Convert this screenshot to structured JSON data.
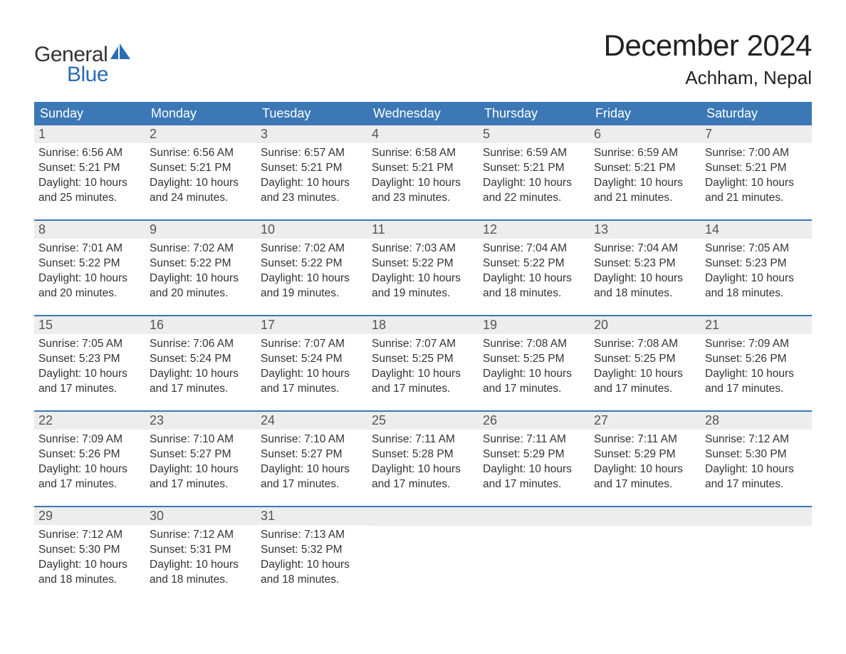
{
  "logo": {
    "text_general": "General",
    "text_blue": "Blue",
    "icon_color": "#2a6db5",
    "text_color_general": "#333333",
    "text_color_blue": "#2a6db5"
  },
  "title": {
    "main": "December 2024",
    "sub": "Achham, Nepal",
    "main_fontsize": 42,
    "sub_fontsize": 26,
    "color": "#222222"
  },
  "calendar": {
    "header_bg": "#3b78b5",
    "header_text_color": "#ffffff",
    "week_border_color": "#3b78b5",
    "daynum_bg": "#ededed",
    "daynum_color": "#555555",
    "content_color": "#333333",
    "content_fontsize": 15.5,
    "day_names": [
      "Sunday",
      "Monday",
      "Tuesday",
      "Wednesday",
      "Thursday",
      "Friday",
      "Saturday"
    ],
    "weeks": [
      [
        {
          "num": "1",
          "sunrise": "Sunrise: 6:56 AM",
          "sunset": "Sunset: 5:21 PM",
          "day1": "Daylight: 10 hours",
          "day2": "and 25 minutes."
        },
        {
          "num": "2",
          "sunrise": "Sunrise: 6:56 AM",
          "sunset": "Sunset: 5:21 PM",
          "day1": "Daylight: 10 hours",
          "day2": "and 24 minutes."
        },
        {
          "num": "3",
          "sunrise": "Sunrise: 6:57 AM",
          "sunset": "Sunset: 5:21 PM",
          "day1": "Daylight: 10 hours",
          "day2": "and 23 minutes."
        },
        {
          "num": "4",
          "sunrise": "Sunrise: 6:58 AM",
          "sunset": "Sunset: 5:21 PM",
          "day1": "Daylight: 10 hours",
          "day2": "and 23 minutes."
        },
        {
          "num": "5",
          "sunrise": "Sunrise: 6:59 AM",
          "sunset": "Sunset: 5:21 PM",
          "day1": "Daylight: 10 hours",
          "day2": "and 22 minutes."
        },
        {
          "num": "6",
          "sunrise": "Sunrise: 6:59 AM",
          "sunset": "Sunset: 5:21 PM",
          "day1": "Daylight: 10 hours",
          "day2": "and 21 minutes."
        },
        {
          "num": "7",
          "sunrise": "Sunrise: 7:00 AM",
          "sunset": "Sunset: 5:21 PM",
          "day1": "Daylight: 10 hours",
          "day2": "and 21 minutes."
        }
      ],
      [
        {
          "num": "8",
          "sunrise": "Sunrise: 7:01 AM",
          "sunset": "Sunset: 5:22 PM",
          "day1": "Daylight: 10 hours",
          "day2": "and 20 minutes."
        },
        {
          "num": "9",
          "sunrise": "Sunrise: 7:02 AM",
          "sunset": "Sunset: 5:22 PM",
          "day1": "Daylight: 10 hours",
          "day2": "and 20 minutes."
        },
        {
          "num": "10",
          "sunrise": "Sunrise: 7:02 AM",
          "sunset": "Sunset: 5:22 PM",
          "day1": "Daylight: 10 hours",
          "day2": "and 19 minutes."
        },
        {
          "num": "11",
          "sunrise": "Sunrise: 7:03 AM",
          "sunset": "Sunset: 5:22 PM",
          "day1": "Daylight: 10 hours",
          "day2": "and 19 minutes."
        },
        {
          "num": "12",
          "sunrise": "Sunrise: 7:04 AM",
          "sunset": "Sunset: 5:22 PM",
          "day1": "Daylight: 10 hours",
          "day2": "and 18 minutes."
        },
        {
          "num": "13",
          "sunrise": "Sunrise: 7:04 AM",
          "sunset": "Sunset: 5:23 PM",
          "day1": "Daylight: 10 hours",
          "day2": "and 18 minutes."
        },
        {
          "num": "14",
          "sunrise": "Sunrise: 7:05 AM",
          "sunset": "Sunset: 5:23 PM",
          "day1": "Daylight: 10 hours",
          "day2": "and 18 minutes."
        }
      ],
      [
        {
          "num": "15",
          "sunrise": "Sunrise: 7:05 AM",
          "sunset": "Sunset: 5:23 PM",
          "day1": "Daylight: 10 hours",
          "day2": "and 17 minutes."
        },
        {
          "num": "16",
          "sunrise": "Sunrise: 7:06 AM",
          "sunset": "Sunset: 5:24 PM",
          "day1": "Daylight: 10 hours",
          "day2": "and 17 minutes."
        },
        {
          "num": "17",
          "sunrise": "Sunrise: 7:07 AM",
          "sunset": "Sunset: 5:24 PM",
          "day1": "Daylight: 10 hours",
          "day2": "and 17 minutes."
        },
        {
          "num": "18",
          "sunrise": "Sunrise: 7:07 AM",
          "sunset": "Sunset: 5:25 PM",
          "day1": "Daylight: 10 hours",
          "day2": "and 17 minutes."
        },
        {
          "num": "19",
          "sunrise": "Sunrise: 7:08 AM",
          "sunset": "Sunset: 5:25 PM",
          "day1": "Daylight: 10 hours",
          "day2": "and 17 minutes."
        },
        {
          "num": "20",
          "sunrise": "Sunrise: 7:08 AM",
          "sunset": "Sunset: 5:25 PM",
          "day1": "Daylight: 10 hours",
          "day2": "and 17 minutes."
        },
        {
          "num": "21",
          "sunrise": "Sunrise: 7:09 AM",
          "sunset": "Sunset: 5:26 PM",
          "day1": "Daylight: 10 hours",
          "day2": "and 17 minutes."
        }
      ],
      [
        {
          "num": "22",
          "sunrise": "Sunrise: 7:09 AM",
          "sunset": "Sunset: 5:26 PM",
          "day1": "Daylight: 10 hours",
          "day2": "and 17 minutes."
        },
        {
          "num": "23",
          "sunrise": "Sunrise: 7:10 AM",
          "sunset": "Sunset: 5:27 PM",
          "day1": "Daylight: 10 hours",
          "day2": "and 17 minutes."
        },
        {
          "num": "24",
          "sunrise": "Sunrise: 7:10 AM",
          "sunset": "Sunset: 5:27 PM",
          "day1": "Daylight: 10 hours",
          "day2": "and 17 minutes."
        },
        {
          "num": "25",
          "sunrise": "Sunrise: 7:11 AM",
          "sunset": "Sunset: 5:28 PM",
          "day1": "Daylight: 10 hours",
          "day2": "and 17 minutes."
        },
        {
          "num": "26",
          "sunrise": "Sunrise: 7:11 AM",
          "sunset": "Sunset: 5:29 PM",
          "day1": "Daylight: 10 hours",
          "day2": "and 17 minutes."
        },
        {
          "num": "27",
          "sunrise": "Sunrise: 7:11 AM",
          "sunset": "Sunset: 5:29 PM",
          "day1": "Daylight: 10 hours",
          "day2": "and 17 minutes."
        },
        {
          "num": "28",
          "sunrise": "Sunrise: 7:12 AM",
          "sunset": "Sunset: 5:30 PM",
          "day1": "Daylight: 10 hours",
          "day2": "and 17 minutes."
        }
      ],
      [
        {
          "num": "29",
          "sunrise": "Sunrise: 7:12 AM",
          "sunset": "Sunset: 5:30 PM",
          "day1": "Daylight: 10 hours",
          "day2": "and 18 minutes."
        },
        {
          "num": "30",
          "sunrise": "Sunrise: 7:12 AM",
          "sunset": "Sunset: 5:31 PM",
          "day1": "Daylight: 10 hours",
          "day2": "and 18 minutes."
        },
        {
          "num": "31",
          "sunrise": "Sunrise: 7:13 AM",
          "sunset": "Sunset: 5:32 PM",
          "day1": "Daylight: 10 hours",
          "day2": "and 18 minutes."
        },
        {
          "empty": true
        },
        {
          "empty": true
        },
        {
          "empty": true
        },
        {
          "empty": true
        }
      ]
    ]
  }
}
